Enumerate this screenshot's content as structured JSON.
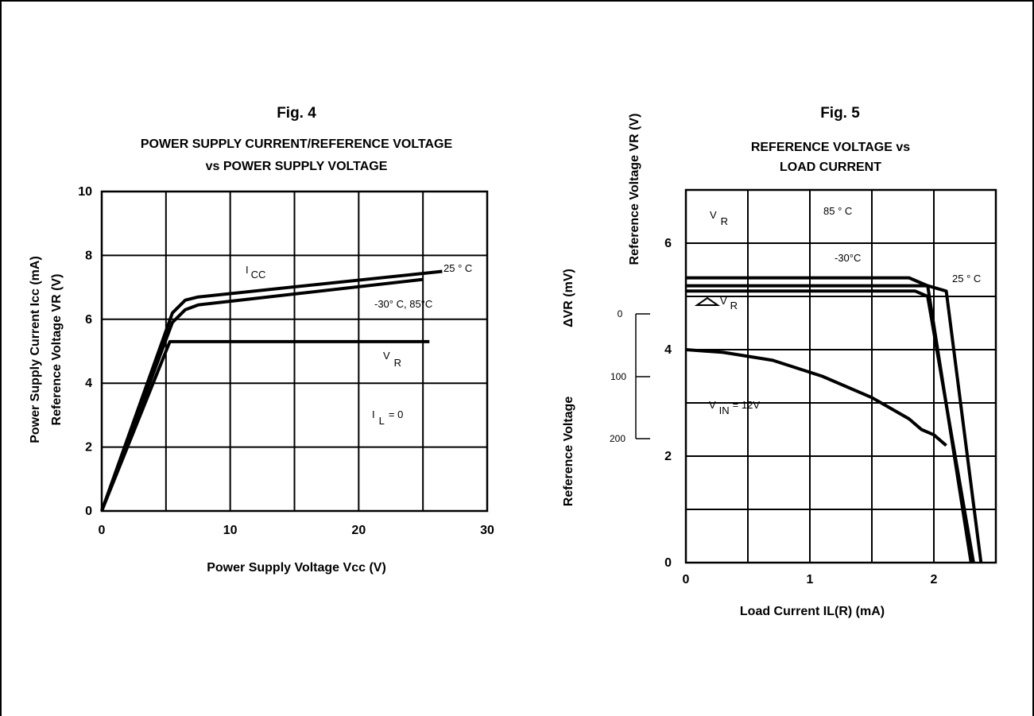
{
  "fig4": {
    "fig_label": "Fig. 4",
    "title_line1": "POWER SUPPLY CURRENT/REFERENCE VOLTAGE",
    "title_line2": "vs POWER SUPPLY VOLTAGE",
    "ylabel_line1": "Power Supply Current Icc  (mA)",
    "ylabel_line2": "Reference Voltage VR  (V)",
    "xlabel": "Power Supply Voltage Vcc  (V)",
    "annotations": {
      "icc": "I",
      "icc_sub": "CC",
      "t25": "25 ° C",
      "t_other": "-30° C,  85°C",
      "vr": "V",
      "vr_sub": "R",
      "il": "I",
      "il_sub": "L",
      "il_val": "= 0"
    }
  },
  "fig5": {
    "fig_label": "Fig. 5",
    "title_line1": "REFERENCE VOLTAGE vs",
    "title_line2": "LOAD CURRENT",
    "ylabel_top": "Reference Voltage VR  (V)",
    "ylabel_bottom": "Reference Voltage",
    "dvr_label": "ΔVR (mV)",
    "xlabel": "Load Current IL(R) (mA)",
    "annotations": {
      "vr": "V",
      "vr_sub": "R",
      "t85": "85 ° C",
      "tm30": "-30°C",
      "t25": "25 ° C",
      "dvr": "V",
      "dvr_sub": "R",
      "vin": "V",
      "vin_sub": "IN",
      "vin_val": "= 12V"
    }
  },
  "chart_data": [
    {
      "type": "line",
      "title": "POWER SUPPLY CURRENT/REFERENCE VOLTAGE vs POWER SUPPLY VOLTAGE",
      "xlabel": "Power Supply Voltage Vcc  (V)",
      "ylabel": "Power Supply Current Icc  (mA) / Reference Voltage VR  (V)",
      "xlim": [
        0,
        30
      ],
      "ylim": [
        0,
        10
      ],
      "xticks": [
        0,
        10,
        20,
        30
      ],
      "yticks": [
        0,
        2,
        4,
        6,
        8,
        10
      ],
      "grid": true,
      "series": [
        {
          "name": "I CC 25 ° C",
          "x": [
            0,
            5.5,
            6.5,
            7.5,
            26.5
          ],
          "y": [
            0,
            6.2,
            6.6,
            6.7,
            7.5
          ]
        },
        {
          "name": "I CC -30° C,  85°C",
          "x": [
            0,
            5.5,
            6.5,
            7.5,
            25
          ],
          "y": [
            0,
            5.9,
            6.3,
            6.45,
            7.25
          ]
        },
        {
          "name": "V R",
          "x": [
            0,
            5.3,
            25.5
          ],
          "y": [
            0,
            5.3,
            5.3
          ]
        }
      ]
    },
    {
      "type": "line",
      "title": "REFERENCE VOLTAGE vs LOAD CURRENT",
      "xlabel": "Load Current IL(R) (mA)",
      "ylabel": "Reference Voltage VR  (V)",
      "xlim": [
        0,
        2.5
      ],
      "ylim": [
        0,
        7
      ],
      "xticks": [
        0,
        1,
        2
      ],
      "yticks": [
        0,
        2,
        4,
        6
      ],
      "secondary_yticks_mV": [
        0,
        100,
        200
      ],
      "grid": true,
      "series": [
        {
          "name": "V R 85 ° C",
          "x": [
            0,
            1.8,
            1.95,
            2.3
          ],
          "y": [
            5.35,
            5.35,
            5.2,
            0
          ]
        },
        {
          "name": "V R 25 ° C",
          "x": [
            0,
            1.95,
            2.1,
            2.38
          ],
          "y": [
            5.2,
            5.2,
            5.1,
            0
          ]
        },
        {
          "name": "V R -30°C",
          "x": [
            0,
            1.85,
            1.95,
            2.32
          ],
          "y": [
            5.1,
            5.1,
            5.0,
            0
          ]
        },
        {
          "name": "ΔV R (V IN = 12V)",
          "x": [
            0,
            0.3,
            0.7,
            1.1,
            1.5,
            1.8,
            1.9,
            2.0,
            2.1
          ],
          "y": [
            4.0,
            3.95,
            3.8,
            3.5,
            3.1,
            2.7,
            2.5,
            2.4,
            2.2
          ]
        }
      ]
    }
  ]
}
